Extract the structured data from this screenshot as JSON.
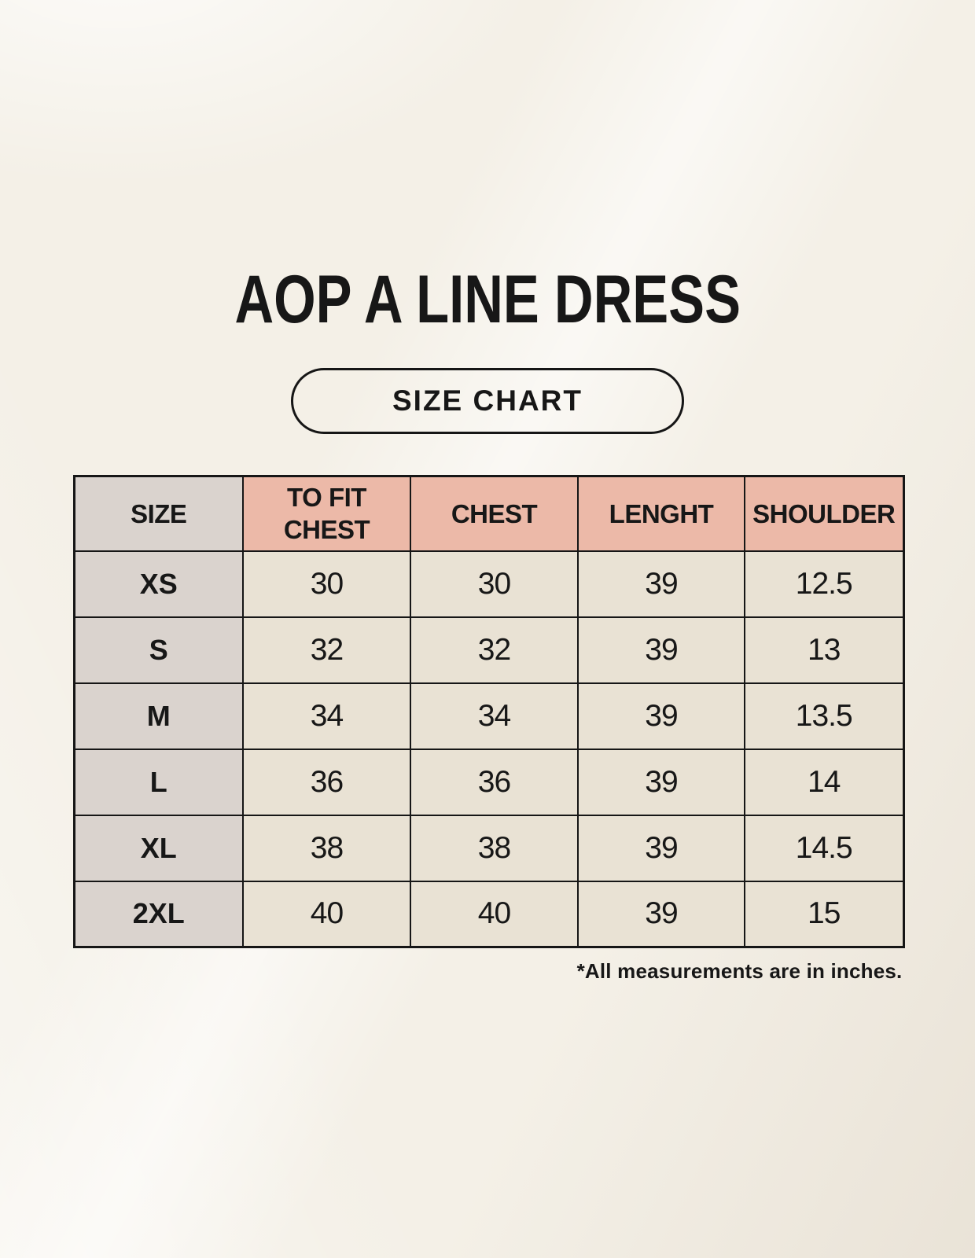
{
  "page": {
    "title": "AOP A LINE DRESS",
    "badge_label": "SIZE CHART",
    "footnote": "*All measurements are in inches."
  },
  "table": {
    "columns": [
      "SIZE",
      "TO FIT CHEST",
      "CHEST",
      "LENGHT",
      "SHOULDER"
    ],
    "rows": [
      [
        "XS",
        "30",
        "30",
        "39",
        "12.5"
      ],
      [
        "S",
        "32",
        "32",
        "39",
        "13"
      ],
      [
        "M",
        "34",
        "34",
        "39",
        "13.5"
      ],
      [
        "L",
        "36",
        "36",
        "39",
        "14"
      ],
      [
        "XL",
        "38",
        "38",
        "39",
        "14.5"
      ],
      [
        "2XL",
        "40",
        "40",
        "39",
        "15"
      ]
    ]
  },
  "colors": {
    "background": "#f4f0e7",
    "header_fill": "#ecb9a8",
    "size_fill": "#dad3ce",
    "cell_fill": "#e9e2d4",
    "border": "#161616",
    "text": "#171717"
  }
}
